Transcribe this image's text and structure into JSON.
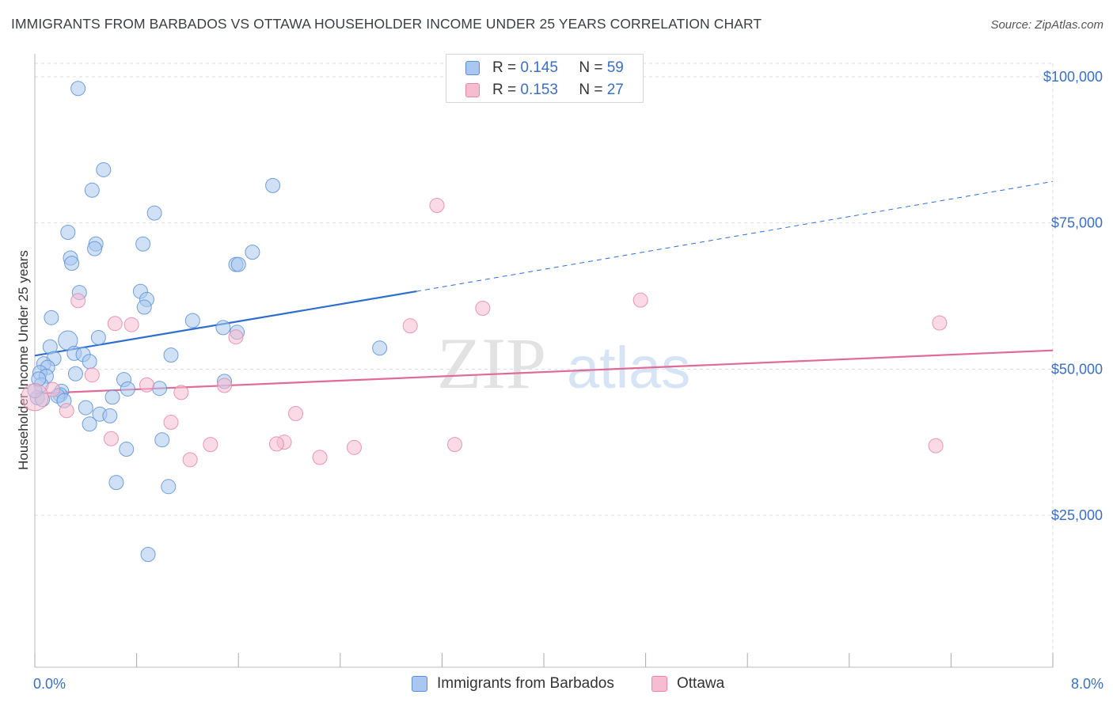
{
  "title": "IMMIGRANTS FROM BARBADOS VS OTTAWA HOUSEHOLDER INCOME UNDER 25 YEARS CORRELATION CHART",
  "source": "Source: ZipAtlas.com",
  "watermark": {
    "zip": "ZIP",
    "atlas": "atlas"
  },
  "legend": {
    "series": [
      {
        "name": "Immigrants from Barbados",
        "r_label": "R =",
        "r_value": "0.145",
        "n_label": "N =",
        "n_value": "59"
      },
      {
        "name": "Ottawa",
        "r_label": "R =",
        "r_value": "0.153",
        "n_label": "N =",
        "n_value": "27"
      }
    ]
  },
  "chart_data": {
    "type": "scatter",
    "title": "IMMIGRANTS FROM BARBADOS VS OTTAWA HOUSEHOLDER INCOME UNDER 25 YEARS CORRELATION CHART",
    "xlabel": "",
    "ylabel": "Householder Income Under 25 years",
    "xlim": [
      0,
      8
    ],
    "ylim": [
      5000,
      105000
    ],
    "x_tick_labels": [
      {
        "value": 0,
        "label": "0.0%"
      },
      {
        "value": 8,
        "label": "8.0%"
      }
    ],
    "y_tick_labels": [
      {
        "value": 25000,
        "label": "$25,000"
      },
      {
        "value": 50000,
        "label": "$50,000"
      },
      {
        "value": 75000,
        "label": "$75,000"
      },
      {
        "value": 100000,
        "label": "$100,000"
      }
    ],
    "grid": true,
    "legend_position": "top-center",
    "colors": {
      "series1_fill": "#aac8ef",
      "series1_stroke": "#5a8fd6",
      "series1_line": "#2e6fce",
      "series2_fill": "#f6bcd0",
      "series2_stroke": "#e487a8",
      "series2_line": "#e06a98",
      "tick_text": "#3a6fc4",
      "grid": "#dddddd"
    },
    "series": [
      {
        "name": "Immigrants from Barbados",
        "points": [
          {
            "x": 0.34,
            "y": 98000,
            "s": 1
          },
          {
            "x": 0.54,
            "y": 84100,
            "s": 1
          },
          {
            "x": 0.45,
            "y": 80600,
            "s": 1
          },
          {
            "x": 1.87,
            "y": 81400,
            "s": 1
          },
          {
            "x": 0.94,
            "y": 76700,
            "s": 1
          },
          {
            "x": 0.26,
            "y": 73400,
            "s": 1
          },
          {
            "x": 0.48,
            "y": 71400,
            "s": 1
          },
          {
            "x": 0.85,
            "y": 71400,
            "s": 1
          },
          {
            "x": 0.47,
            "y": 70600,
            "s": 1
          },
          {
            "x": 1.71,
            "y": 70000,
            "s": 1
          },
          {
            "x": 0.28,
            "y": 69000,
            "s": 1
          },
          {
            "x": 0.29,
            "y": 68100,
            "s": 1
          },
          {
            "x": 1.58,
            "y": 67900,
            "s": 1
          },
          {
            "x": 1.6,
            "y": 67900,
            "s": 1
          },
          {
            "x": 0.35,
            "y": 63100,
            "s": 1
          },
          {
            "x": 0.83,
            "y": 63300,
            "s": 1
          },
          {
            "x": 0.88,
            "y": 61900,
            "s": 1
          },
          {
            "x": 0.86,
            "y": 60600,
            "s": 1
          },
          {
            "x": 0.13,
            "y": 58800,
            "s": 1
          },
          {
            "x": 1.24,
            "y": 58300,
            "s": 1
          },
          {
            "x": 1.48,
            "y": 57100,
            "s": 1
          },
          {
            "x": 1.59,
            "y": 56300,
            "s": 1
          },
          {
            "x": 0.5,
            "y": 55400,
            "s": 1
          },
          {
            "x": 0.26,
            "y": 54900,
            "s": 1.35
          },
          {
            "x": 0.12,
            "y": 53800,
            "s": 1
          },
          {
            "x": 2.71,
            "y": 53600,
            "s": 1
          },
          {
            "x": 0.31,
            "y": 52700,
            "s": 1
          },
          {
            "x": 0.38,
            "y": 52500,
            "s": 1
          },
          {
            "x": 1.07,
            "y": 52400,
            "s": 1
          },
          {
            "x": 0.15,
            "y": 51800,
            "s": 1
          },
          {
            "x": 0.43,
            "y": 51300,
            "s": 1
          },
          {
            "x": 0.07,
            "y": 50900,
            "s": 1
          },
          {
            "x": 0.1,
            "y": 50300,
            "s": 1
          },
          {
            "x": 0.04,
            "y": 49400,
            "s": 1
          },
          {
            "x": 0.32,
            "y": 49200,
            "s": 1
          },
          {
            "x": 0.09,
            "y": 48800,
            "s": 1
          },
          {
            "x": 0.7,
            "y": 48200,
            "s": 1
          },
          {
            "x": 1.49,
            "y": 47900,
            "s": 1
          },
          {
            "x": 0.05,
            "y": 47300,
            "s": 1
          },
          {
            "x": 0.73,
            "y": 46600,
            "s": 1
          },
          {
            "x": 0.98,
            "y": 46700,
            "s": 1
          },
          {
            "x": 0.21,
            "y": 46200,
            "s": 1
          },
          {
            "x": 0.2,
            "y": 45600,
            "s": 1
          },
          {
            "x": 0.18,
            "y": 45400,
            "s": 1
          },
          {
            "x": 0.61,
            "y": 45200,
            "s": 1
          },
          {
            "x": 0.02,
            "y": 45100,
            "s": 1
          },
          {
            "x": 0.06,
            "y": 44800,
            "s": 1
          },
          {
            "x": 0.23,
            "y": 44600,
            "s": 1
          },
          {
            "x": 0.4,
            "y": 43400,
            "s": 1
          },
          {
            "x": 0.51,
            "y": 42300,
            "s": 1
          },
          {
            "x": 0.59,
            "y": 42000,
            "s": 1
          },
          {
            "x": 0.43,
            "y": 40600,
            "s": 1
          },
          {
            "x": 1.0,
            "y": 37900,
            "s": 1
          },
          {
            "x": 0.72,
            "y": 36300,
            "s": 1
          },
          {
            "x": 0.64,
            "y": 30600,
            "s": 1
          },
          {
            "x": 1.05,
            "y": 29900,
            "s": 1
          },
          {
            "x": 0.89,
            "y": 18300,
            "s": 1
          },
          {
            "x": 0.0,
            "y": 46300,
            "s": 1
          },
          {
            "x": 0.03,
            "y": 48300,
            "s": 1
          }
        ],
        "trend": {
          "x1": 0.0,
          "y1": 52300,
          "x2": 3.0,
          "y2": 63300,
          "dashed_to_x": 8.0,
          "dashed_to_y": 82100
        }
      },
      {
        "name": "Ottawa",
        "points": [
          {
            "x": 3.16,
            "y": 78000,
            "s": 1
          },
          {
            "x": 4.76,
            "y": 61800,
            "s": 1
          },
          {
            "x": 0.34,
            "y": 61700,
            "s": 1
          },
          {
            "x": 3.52,
            "y": 60400,
            "s": 1
          },
          {
            "x": 7.11,
            "y": 57900,
            "s": 1
          },
          {
            "x": 0.63,
            "y": 57800,
            "s": 1
          },
          {
            "x": 0.76,
            "y": 57600,
            "s": 1
          },
          {
            "x": 2.95,
            "y": 57400,
            "s": 1
          },
          {
            "x": 1.58,
            "y": 55500,
            "s": 1
          },
          {
            "x": 0.45,
            "y": 49000,
            "s": 1
          },
          {
            "x": 0.88,
            "y": 47300,
            "s": 1
          },
          {
            "x": 1.49,
            "y": 47200,
            "s": 1
          },
          {
            "x": 0.14,
            "y": 46500,
            "s": 1
          },
          {
            "x": 1.15,
            "y": 46000,
            "s": 1
          },
          {
            "x": 0.0,
            "y": 45200,
            "s": 1.9
          },
          {
            "x": 0.25,
            "y": 42900,
            "s": 1
          },
          {
            "x": 2.05,
            "y": 42400,
            "s": 1
          },
          {
            "x": 1.07,
            "y": 40900,
            "s": 1
          },
          {
            "x": 0.6,
            "y": 38100,
            "s": 1
          },
          {
            "x": 1.96,
            "y": 37500,
            "s": 1
          },
          {
            "x": 1.9,
            "y": 37200,
            "s": 1
          },
          {
            "x": 1.38,
            "y": 37100,
            "s": 1
          },
          {
            "x": 3.3,
            "y": 37100,
            "s": 1
          },
          {
            "x": 2.51,
            "y": 36600,
            "s": 1
          },
          {
            "x": 7.08,
            "y": 36900,
            "s": 1
          },
          {
            "x": 2.24,
            "y": 34900,
            "s": 1
          },
          {
            "x": 1.22,
            "y": 34500,
            "s": 1
          }
        ],
        "trend": {
          "x1": 0.0,
          "y1": 45800,
          "x2": 8.0,
          "y2": 53200
        }
      }
    ]
  }
}
